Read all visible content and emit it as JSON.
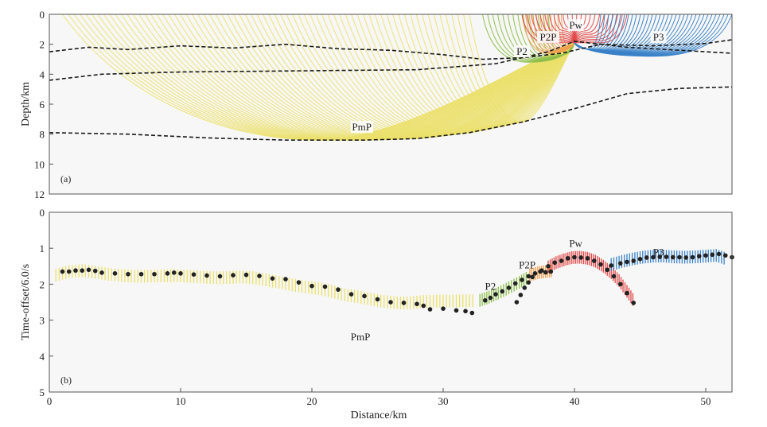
{
  "chart_data": [
    {
      "type": "raypath-model",
      "panel_label": "(a)",
      "ylabel": "Depth/km",
      "xlim": [
        0,
        52
      ],
      "ylim": [
        0,
        12
      ],
      "y_inverted": true,
      "yticks": [
        "0",
        "2",
        "4",
        "6",
        "8",
        "10",
        "12"
      ],
      "colors": {
        "PmP": "#ebe06a",
        "P2": "#8cbf4a",
        "P2P": "#f0a050",
        "Pw": "#e04848",
        "P3": "#3a82c8",
        "boundary": "#1a1a1a"
      },
      "interfaces": [
        {
          "name": "boundary-1",
          "x": [
            0,
            3,
            6,
            10,
            14,
            18,
            22,
            26,
            30,
            33,
            36,
            39,
            42,
            46,
            50,
            52
          ],
          "depth": [
            2.5,
            2.2,
            2.35,
            2.1,
            2.25,
            2.0,
            2.3,
            2.4,
            2.7,
            3.0,
            2.9,
            2.6,
            2.0,
            2.1,
            1.95,
            1.7
          ]
        },
        {
          "name": "boundary-2",
          "x": [
            0,
            4,
            10,
            16,
            22,
            28,
            34,
            38,
            40,
            44,
            48,
            52
          ],
          "depth": [
            4.4,
            4.0,
            3.85,
            3.8,
            3.75,
            3.7,
            3.3,
            2.5,
            1.8,
            2.2,
            2.4,
            2.6
          ]
        },
        {
          "name": "moho",
          "x": [
            0,
            6,
            12,
            18,
            24,
            28,
            32,
            36,
            40,
            44,
            48,
            52
          ],
          "depth": [
            7.9,
            8.0,
            8.25,
            8.4,
            8.4,
            8.3,
            7.9,
            7.2,
            6.3,
            5.3,
            4.95,
            4.85
          ]
        }
      ],
      "raypaths": {
        "PmP": {
          "source_x": 40,
          "source_depth": 1.9,
          "receivers_x": [
            1,
            32
          ],
          "bottom_depth": [
            7.9,
            8.4
          ]
        },
        "P2": {
          "source_x": 40,
          "receivers_x": [
            33,
            38
          ],
          "turning_depth": [
            2.5,
            3.2
          ]
        },
        "P2P": {
          "source_x": 40,
          "receivers_x": [
            36,
            39
          ],
          "turning_depth": [
            1.9,
            2.6
          ]
        },
        "Pw": {
          "source_x": 40,
          "receivers_x": [
            36,
            44
          ],
          "turning_depth": [
            0.6,
            1.9
          ]
        },
        "P3": {
          "source_x": 40,
          "receivers_x": [
            42,
            52
          ],
          "turning_depth": [
            2.2,
            2.8
          ]
        }
      },
      "labels": [
        {
          "text": "PmP",
          "x": 23.8,
          "depth": 7.6
        },
        {
          "text": "P2",
          "x": 36,
          "depth": 2.55
        },
        {
          "text": "P2P",
          "x": 38,
          "depth": 1.6
        },
        {
          "text": "Pw",
          "x": 40.1,
          "depth": 0.8
        },
        {
          "text": "P3",
          "x": 46.4,
          "depth": 1.6
        }
      ]
    },
    {
      "type": "scatter",
      "panel_label": "(b)",
      "ylabel": "Time-offset/6.0/s",
      "xlabel": "Distance/km",
      "xlim": [
        0,
        52
      ],
      "ylim": [
        0,
        5
      ],
      "y_inverted": true,
      "xticks": [
        "0",
        "10",
        "20",
        "30",
        "40",
        "50"
      ],
      "yticks": [
        "0",
        "1",
        "2",
        "3",
        "4",
        "5"
      ],
      "series": [
        {
          "name": "PmP",
          "color": "#ebe06a",
          "observed": {
            "x": [
              1.0,
              1.5,
              2.0,
              2.5,
              3.0,
              3.5,
              4.0,
              5.0,
              6.0,
              7.0,
              8.0,
              9.0,
              9.5,
              10.0,
              11.0,
              12.0,
              13.0,
              14.0,
              15.0,
              16.0,
              17.0,
              18.0,
              19.0,
              20.0,
              21.0,
              22.0,
              23.0,
              24.0,
              25.0,
              26.0,
              27.0,
              28.0,
              28.5,
              29.0,
              30.0,
              31.0,
              31.7,
              32.2
            ],
            "y": [
              1.65,
              1.65,
              1.62,
              1.62,
              1.6,
              1.63,
              1.68,
              1.7,
              1.72,
              1.72,
              1.72,
              1.7,
              1.68,
              1.7,
              1.73,
              1.76,
              1.78,
              1.75,
              1.74,
              1.77,
              1.84,
              1.86,
              1.95,
              2.05,
              2.07,
              2.15,
              2.28,
              2.33,
              2.42,
              2.5,
              2.52,
              2.55,
              2.6,
              2.7,
              2.68,
              2.73,
              2.75,
              2.8
            ]
          },
          "calculated": {
            "x": [
              0.5,
              1.5,
              2.5,
              3.5,
              4.5,
              5.5,
              6.5,
              7.5,
              8.5,
              9.5,
              10.5,
              11.5,
              12.5,
              13.5,
              14.5,
              15.5,
              16.5,
              17.5,
              18.5,
              19.5,
              20.5,
              21.5,
              22.5,
              23.5,
              24.5,
              25.5,
              26.5,
              27.5,
              28.5,
              29.5,
              30.5,
              31.5,
              32.5
            ],
            "y": [
              1.75,
              1.65,
              1.62,
              1.67,
              1.72,
              1.76,
              1.78,
              1.78,
              1.77,
              1.76,
              1.78,
              1.8,
              1.82,
              1.82,
              1.8,
              1.82,
              1.88,
              1.95,
              2.02,
              2.08,
              2.12,
              2.2,
              2.3,
              2.35,
              2.42,
              2.48,
              2.52,
              2.52,
              2.48,
              2.47,
              2.47,
              2.46,
              2.46
            ]
          }
        },
        {
          "name": "P2",
          "color": "#8cbf4a",
          "observed": {
            "x": [
              33.2,
              33.6,
              34.0,
              34.5,
              35.0,
              35.5,
              36.0,
              36.5
            ],
            "y": [
              2.45,
              2.38,
              2.28,
              2.2,
              2.1,
              1.98,
              1.88,
              1.78
            ]
          },
          "calculated": {
            "x": [
              32.8,
              33.5,
              34.2,
              35.0,
              35.8,
              36.5
            ],
            "y": [
              2.45,
              2.36,
              2.25,
              2.1,
              1.95,
              1.8
            ]
          }
        },
        {
          "name": "P2P",
          "color": "#f0a050",
          "observed": {
            "x": [
              35.6,
              35.9,
              36.2,
              36.5,
              36.8,
              37.0,
              37.4,
              37.8,
              38.2
            ],
            "y": [
              2.5,
              2.3,
              2.1,
              1.95,
              1.8,
              1.7,
              1.65,
              1.67,
              1.65
            ]
          },
          "calculated": {
            "x": [
              36.6,
              37.2,
              37.8,
              38.4
            ],
            "y": [
              1.75,
              1.68,
              1.65,
              1.62
            ]
          }
        },
        {
          "name": "Pw",
          "color": "#e04848",
          "observed": {
            "x": [
              37.5,
              38.0,
              38.5,
              39.0,
              39.5,
              40.0,
              40.5,
              41.0,
              41.5,
              42.0,
              42.5,
              43.0,
              43.5,
              44.0,
              44.5
            ],
            "y": [
              1.62,
              1.5,
              1.4,
              1.35,
              1.28,
              1.25,
              1.26,
              1.28,
              1.35,
              1.45,
              1.6,
              1.78,
              2.0,
              2.25,
              2.52
            ]
          },
          "calculated": {
            "x": [
              38.0,
              38.6,
              39.2,
              39.8,
              40.4,
              41.0,
              41.6,
              42.2,
              42.8,
              43.4,
              44.0,
              44.6
            ],
            "y": [
              1.52,
              1.4,
              1.32,
              1.26,
              1.25,
              1.28,
              1.36,
              1.5,
              1.68,
              1.9,
              2.2,
              2.5
            ]
          }
        },
        {
          "name": "P3",
          "color": "#3a82c8",
          "observed": {
            "x": [
              42.8,
              43.5,
              44.0,
              44.5,
              45.0,
              45.5,
              46.0,
              46.5,
              47.0,
              47.5,
              48.0,
              48.5,
              49.0,
              49.5,
              50.0,
              50.5,
              51.0,
              51.5,
              52.0
            ],
            "y": [
              1.48,
              1.42,
              1.38,
              1.35,
              1.3,
              1.26,
              1.25,
              1.24,
              1.24,
              1.25,
              1.25,
              1.26,
              1.25,
              1.22,
              1.2,
              1.18,
              1.16,
              1.2,
              1.25
            ]
          },
          "calculated": {
            "x": [
              42.8,
              43.6,
              44.4,
              45.2,
              46.0,
              46.8,
              47.6,
              48.4,
              49.2,
              50.0,
              50.8,
              51.6
            ],
            "y": [
              1.45,
              1.37,
              1.3,
              1.25,
              1.22,
              1.22,
              1.24,
              1.25,
              1.24,
              1.22,
              1.2,
              1.3
            ]
          }
        }
      ],
      "labels": [
        {
          "text": "PmP",
          "x": 23.7,
          "time": 3.45
        },
        {
          "text": "P2",
          "x": 33.6,
          "time": 2.05
        },
        {
          "text": "P2P",
          "x": 36.4,
          "time": 1.45
        },
        {
          "text": "Pw",
          "x": 40.1,
          "time": 0.85
        },
        {
          "text": "P3",
          "x": 46.4,
          "time": 1.1
        }
      ]
    }
  ]
}
